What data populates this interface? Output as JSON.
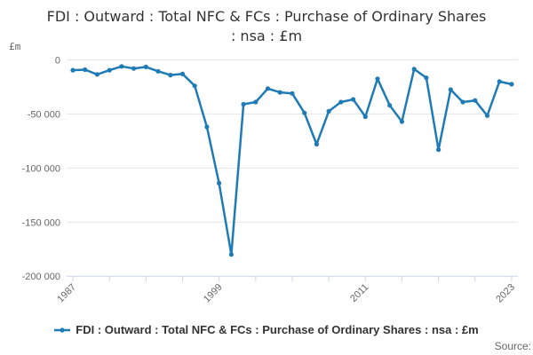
{
  "title": "FDI : Outward : Total NFC & FCs : Purchase of Ordinary Shares : nsa : £m",
  "y_axis_unit": "£m",
  "source_label": "Source:",
  "legend": {
    "label": "FDI : Outward : Total NFC & FCs : Purchase of Ordinary Shares : nsa : £m"
  },
  "colors": {
    "line": "#1f7bb6",
    "axis": "#ccd6eb",
    "grid": "#e6e6e6",
    "tick_label": "#666666",
    "title": "#333333"
  },
  "chart_data": {
    "type": "line",
    "title": "FDI : Outward : Total NFC & FCs : Purchase of Ordinary Shares : nsa : £m",
    "ylabel": "£m",
    "xlabel": "",
    "grid": true,
    "legend_position": "bottom",
    "ylim": [
      -200000,
      0
    ],
    "yticks": [
      0,
      -50000,
      -100000,
      -150000,
      -200000
    ],
    "x_labeled_ticks": [
      1987,
      1999,
      2011,
      2023
    ],
    "x_tick_interval": 3,
    "x": [
      1987,
      1988,
      1989,
      1990,
      1991,
      1992,
      1993,
      1994,
      1995,
      1996,
      1997,
      1998,
      1999,
      2000,
      2001,
      2002,
      2003,
      2004,
      2005,
      2006,
      2007,
      2008,
      2009,
      2010,
      2011,
      2012,
      2013,
      2014,
      2015,
      2016,
      2017,
      2018,
      2019,
      2020,
      2021,
      2022,
      2023
    ],
    "values": [
      -9500,
      -9000,
      -13500,
      -9500,
      -6000,
      -8000,
      -6500,
      -10500,
      -14000,
      -13000,
      -24000,
      -62000,
      -114000,
      -180000,
      -41000,
      -39000,
      -26500,
      -30000,
      -31000,
      -49000,
      -78000,
      -47500,
      -39000,
      -36500,
      -52500,
      -17500,
      -42000,
      -57000,
      -8500,
      -16500,
      -83000,
      -27500,
      -39000,
      -37500,
      -51500,
      -20000,
      -22500
    ],
    "series": [
      {
        "name": "FDI : Outward : Total NFC & FCs : Purchase of Ordinary Shares : nsa : £m"
      }
    ]
  }
}
